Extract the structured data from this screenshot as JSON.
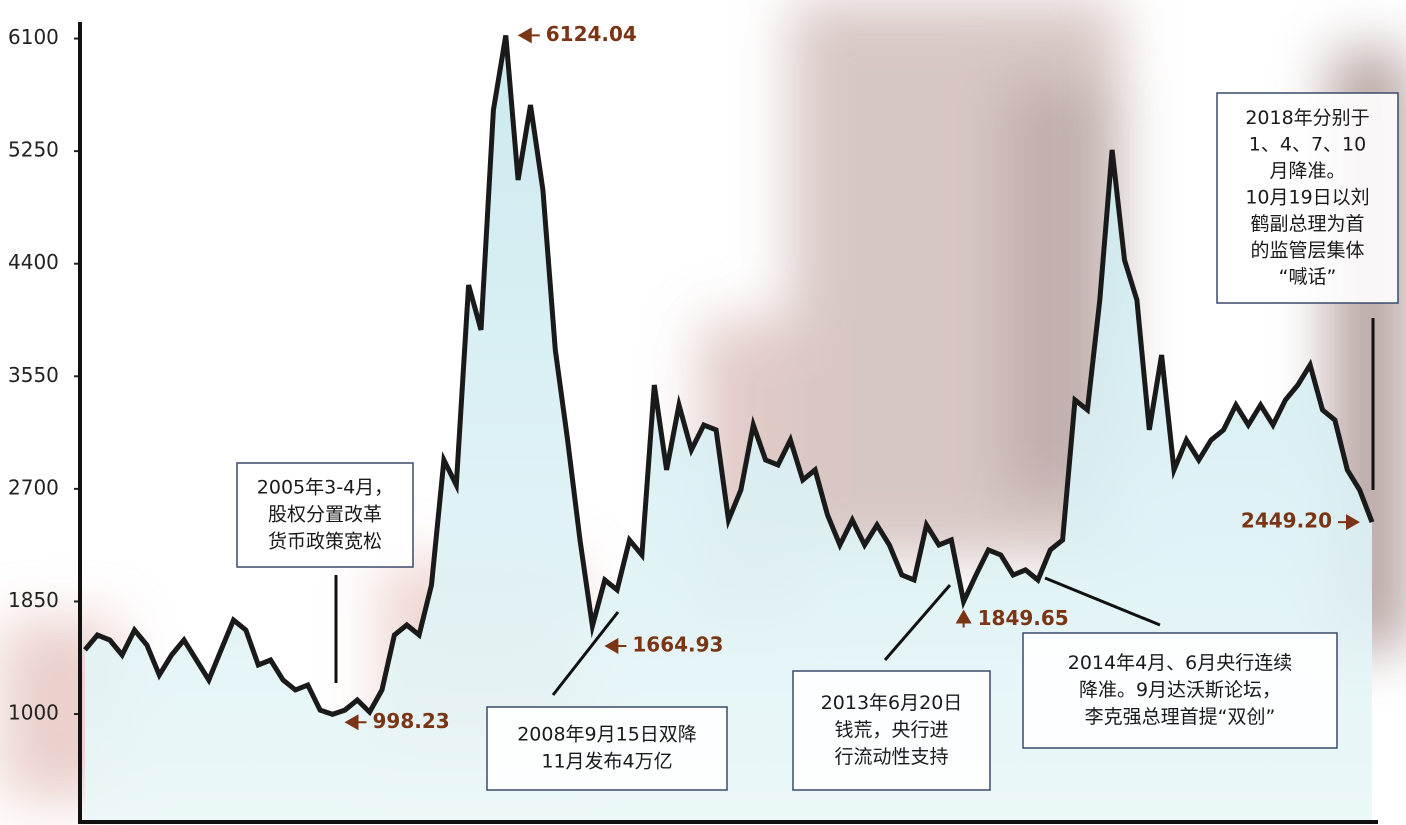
{
  "chart_data": {
    "type": "area",
    "series": [
      {
        "line_color": "#1a1a1a",
        "fill_color": "#d6eff3",
        "values": [
          1484,
          1597,
          1559,
          1446,
          1634,
          1521,
          1295,
          1446,
          1559,
          1408,
          1257,
          1484,
          1710,
          1634,
          1370,
          1408,
          1257,
          1182,
          1219,
          1030,
          998.23,
          1030,
          1106,
          1015,
          1182,
          1597,
          1672,
          1597,
          1974,
          2918,
          2729,
          4239,
          3900,
          5560,
          6124.04,
          5032,
          5598,
          4957,
          3749,
          3069,
          2314,
          1664.93,
          2012,
          1937,
          2314,
          2201,
          3484,
          2843,
          3333,
          2994,
          3182,
          3145,
          2465,
          2692,
          3182,
          2918,
          2880,
          3069,
          2767,
          2843,
          2503,
          2276,
          2465,
          2276,
          2427,
          2276,
          2050,
          2012,
          2427,
          2276,
          2314,
          1849.65,
          2050,
          2239,
          2201,
          2050,
          2088,
          2012,
          2239,
          2314,
          3371,
          3296,
          4126,
          5259,
          4428,
          4126,
          3145,
          3711,
          2843,
          3069,
          2918,
          3069,
          3145,
          3333,
          3182,
          3333,
          3182,
          3371,
          3484,
          3635,
          3296,
          3220,
          2843,
          2692,
          2449.2
        ],
        "value_labels": [
          null,
          null,
          null,
          null,
          null,
          null,
          null,
          null,
          null,
          null,
          null,
          null,
          null,
          null,
          null,
          null,
          null,
          null,
          null,
          null,
          "998.23",
          null,
          null,
          null,
          null,
          null,
          null,
          null,
          null,
          null,
          null,
          null,
          null,
          null,
          "6124.04",
          null,
          null,
          null,
          null,
          null,
          null,
          "1664.93",
          null,
          null,
          null,
          null,
          null,
          null,
          null,
          null,
          null,
          null,
          null,
          null,
          null,
          null,
          null,
          null,
          null,
          null,
          null,
          null,
          null,
          null,
          null,
          null,
          null,
          null,
          null,
          null,
          null,
          "1849.65",
          null,
          null,
          null,
          null,
          null,
          null,
          null,
          null,
          null,
          null,
          null,
          null,
          null,
          null,
          null,
          null,
          null,
          null,
          null,
          null,
          null,
          null,
          null,
          null,
          null,
          null,
          null,
          null,
          null,
          null,
          null,
          null,
          "2449.20"
        ]
      }
    ],
    "ylim": [
      200,
      6240
    ],
    "yticks": [
      1000,
      1850,
      2700,
      3550,
      4400,
      5250,
      6100
    ],
    "annotations": [
      {
        "lines": [
          "2005年3-4月，",
          "股权分置改革",
          "货币政策宽松"
        ]
      },
      {
        "lines": [
          "2008年9月15日双降",
          "11月发布4万亿"
        ]
      },
      {
        "lines": [
          "2013年6月20日",
          "钱荒，央行进",
          "行流动性支持"
        ]
      },
      {
        "lines": [
          "2014年4月、6月央行连续",
          "降准。9月达沃斯论坛，",
          "李克强总理首提“双创”"
        ]
      },
      {
        "lines": [
          "2018年分别于",
          "1、4、7、10",
          "月降准。",
          "10月19日以刘",
          "鹤副总理为首",
          "的监管层集体",
          "“喊话”"
        ]
      }
    ]
  }
}
